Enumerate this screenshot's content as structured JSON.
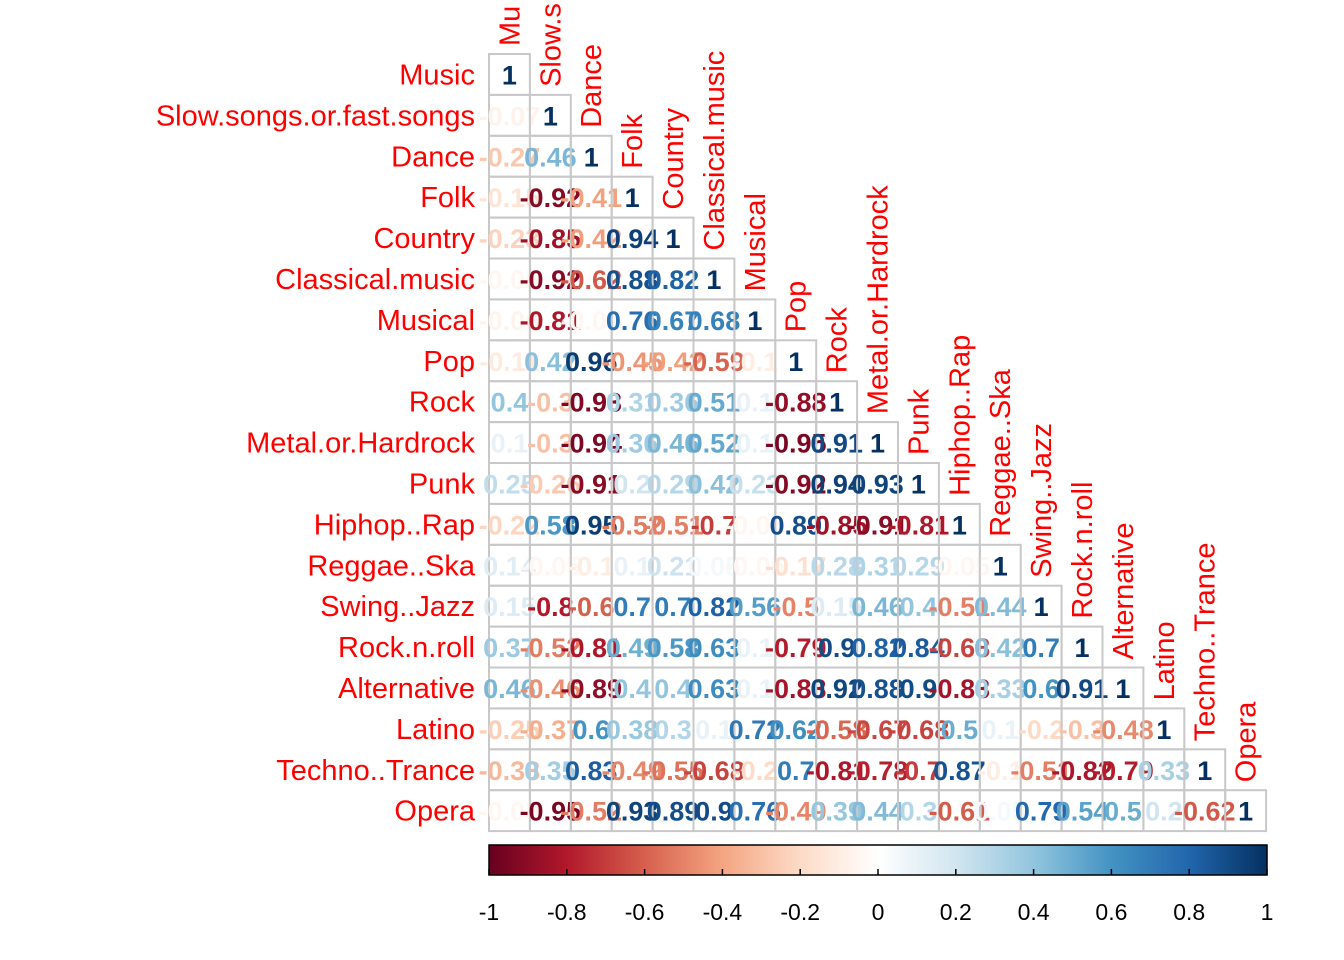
{
  "chart_data": {
    "type": "heatmap",
    "title": "",
    "variables": [
      "Music",
      "Slow.songs.or.fast.songs",
      "Dance",
      "Folk",
      "Country",
      "Classical.music",
      "Musical",
      "Pop",
      "Rock",
      "Metal.or.Hardrock",
      "Punk",
      "Hiphop..Rap",
      "Reggae..Ska",
      "Swing..Jazz",
      "Rock.n.roll",
      "Alternative",
      "Latino",
      "Techno..Trance",
      "Opera"
    ],
    "top_labels": [
      "Mu",
      "Slow.s",
      "Dance",
      "Folk",
      "Country",
      "Classical.music",
      "Musical",
      "Pop",
      "Rock",
      "Metal.or.Hardrock",
      "Punk",
      "Hiphop..Rap",
      "Reggae..Ska",
      "Swing..Jazz",
      "Rock.n.roll",
      "Alternative",
      "Latino",
      "Techno..Trance",
      "Opera"
    ],
    "layout": "lower-triangle",
    "matrix": [
      [
        1
      ],
      [
        -0.07,
        1
      ],
      [
        -0.27,
        0.46,
        1
      ],
      [
        -0.15,
        -0.92,
        -0.41,
        1
      ],
      [
        -0.23,
        -0.85,
        -0.42,
        0.94,
        1
      ],
      [
        -0.05,
        -0.92,
        -0.62,
        0.88,
        0.82,
        1
      ],
      [
        -0.06,
        -0.81,
        -0.05,
        0.76,
        0.67,
        0.68,
        1
      ],
      [
        -0.11,
        0.42,
        0.96,
        -0.45,
        -0.42,
        -0.59,
        -0.1,
        1
      ],
      [
        0.4,
        -0.3,
        -0.93,
        0.31,
        0.36,
        0.51,
        0.1,
        -0.88,
        1
      ],
      [
        0.1,
        -0.3,
        -0.94,
        0.36,
        0.46,
        0.52,
        0.1,
        -0.95,
        0.91,
        1
      ],
      [
        0.25,
        -0.26,
        -0.91,
        0.2,
        0.29,
        0.42,
        0.23,
        -0.92,
        0.94,
        0.93,
        1
      ],
      [
        -0.22,
        0.58,
        0.95,
        -0.52,
        -0.51,
        -0.7,
        -0.05,
        0.89,
        -0.85,
        -0.91,
        -0.81,
        1
      ],
      [
        0.14,
        -0.05,
        -0.1,
        0.1,
        0.21,
        0.05,
        -0.05,
        -0.17,
        0.28,
        0.31,
        0.29,
        -0.05,
        1
      ],
      [
        0.15,
        -0.8,
        -0.6,
        0.7,
        0.7,
        0.82,
        0.56,
        -0.5,
        0.15,
        0.46,
        0.4,
        -0.51,
        0.44,
        1
      ],
      [
        0.37,
        -0.52,
        -0.81,
        0.49,
        0.58,
        0.63,
        0.1,
        -0.79,
        0.9,
        0.82,
        0.84,
        -0.68,
        0.42,
        0.7,
        1
      ],
      [
        0.46,
        -0.46,
        -0.89,
        0.4,
        0.4,
        0.63,
        0.1,
        -0.83,
        0.92,
        0.88,
        0.9,
        -0.83,
        0.33,
        0.6,
        0.91,
        1
      ],
      [
        -0.25,
        -0.37,
        0.6,
        0.38,
        0.3,
        0.1,
        0.72,
        0.62,
        -0.58,
        -0.67,
        -0.68,
        0.5,
        0.1,
        -0.2,
        -0.3,
        -0.48,
        1
      ],
      [
        -0.33,
        0.35,
        0.83,
        -0.49,
        -0.55,
        -0.68,
        -0.2,
        0.7,
        -0.81,
        -0.78,
        -0.7,
        0.87,
        -0.1,
        -0.51,
        -0.82,
        -0.79,
        0.33,
        1
      ],
      [
        -0.05,
        -0.95,
        -0.52,
        0.93,
        0.89,
        0.9,
        0.76,
        -0.49,
        0.39,
        0.44,
        0.3,
        -0.61,
        0.05,
        0.79,
        0.54,
        0.5,
        0.2,
        -0.62,
        1
      ]
    ],
    "colorbar": {
      "min": -1,
      "max": 1,
      "ticks": [
        "-1",
        "-0.8",
        "-0.6",
        "-0.4",
        "-0.2",
        "0",
        "0.2",
        "0.4",
        "0.6",
        "0.8",
        "1"
      ]
    },
    "palette": {
      "neg": "#67001f",
      "mid": "#ffffff",
      "pos": "#053061"
    },
    "label_color": "#ff0000"
  }
}
